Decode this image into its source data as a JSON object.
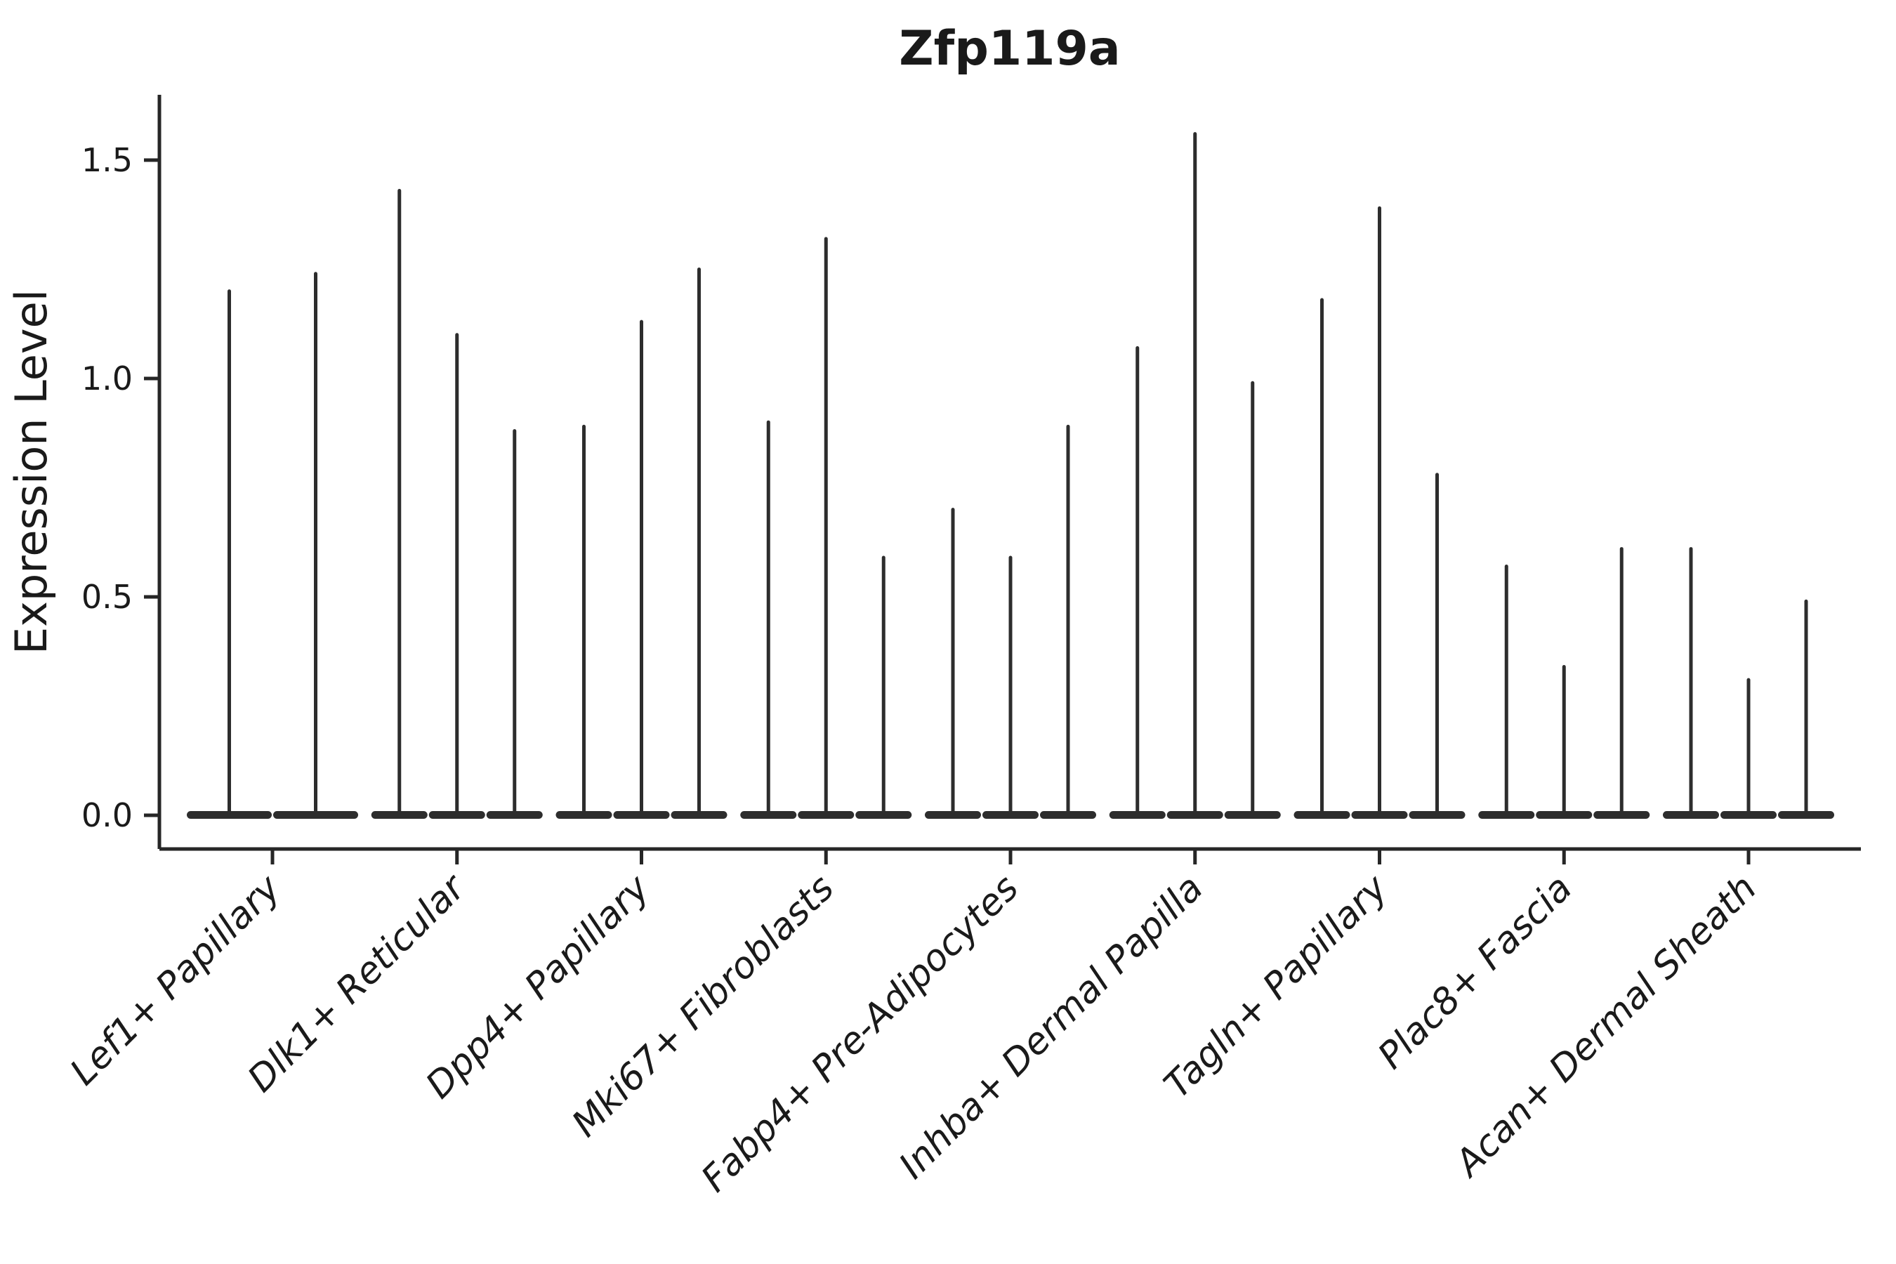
{
  "chart_data": {
    "type": "violin",
    "title": "Zfp119a",
    "ylabel": "Expression Level",
    "xlabel": "",
    "categories": [
      "Lef1+ Papillary",
      "Dlk1+ Reticular",
      "Dpp4+ Papillary",
      "Mki67+ Fibroblasts",
      "Fabp4+ Pre-Adipocytes",
      "Inhba+ Dermal Papilla",
      "Tagln+ Papillary",
      "Plac8+ Fascia",
      "Acan+ Dermal Sheath"
    ],
    "violins_per_category": [
      2,
      3,
      3,
      3,
      3,
      3,
      3,
      3,
      3
    ],
    "series": [
      {
        "category": "Lef1+ Papillary",
        "spike_maxima": [
          1.2,
          1.24
        ]
      },
      {
        "category": "Dlk1+ Reticular",
        "spike_maxima": [
          1.43,
          1.1,
          0.88
        ]
      },
      {
        "category": "Dpp4+ Papillary",
        "spike_maxima": [
          0.89,
          1.13,
          1.25
        ]
      },
      {
        "category": "Mki67+ Fibroblasts",
        "spike_maxima": [
          0.9,
          1.32,
          0.59
        ]
      },
      {
        "category": "Fabp4+ Pre-Adipocytes",
        "spike_maxima": [
          0.7,
          0.59,
          0.89
        ]
      },
      {
        "category": "Inhba+ Dermal Papilla",
        "spike_maxima": [
          1.07,
          1.56,
          0.99
        ]
      },
      {
        "category": "Tagln+ Papillary",
        "spike_maxima": [
          1.18,
          1.39,
          0.78
        ]
      },
      {
        "category": "Plac8+ Fascia",
        "spike_maxima": [
          0.57,
          0.34,
          0.61
        ]
      },
      {
        "category": "Acan+ Dermal Sheath",
        "spike_maxima": [
          0.61,
          0.31,
          0.49
        ]
      }
    ],
    "density_bulk_at_zero": true,
    "y_ticks": [
      0.0,
      0.5,
      1.0,
      1.5
    ],
    "y_tick_labels": [
      "0.0",
      "0.5",
      "1.0",
      "1.5"
    ],
    "ylim": [
      -0.08,
      1.65
    ],
    "grid": false,
    "legend": null,
    "ink_color": "#262626",
    "violin_color": "#2d2d2d",
    "background_color": "#ffffff"
  }
}
